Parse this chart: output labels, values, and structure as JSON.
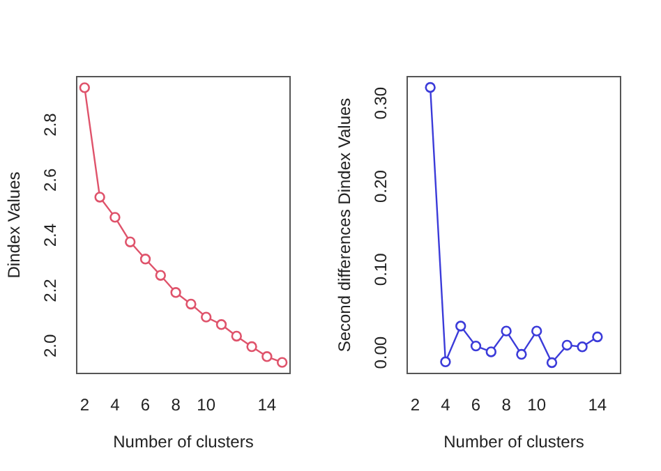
{
  "chart_data": [
    {
      "type": "line",
      "xlabel": "Number of clusters",
      "ylabel": "Dindex Values",
      "marker": "circle",
      "x": [
        2,
        3,
        4,
        5,
        6,
        7,
        8,
        9,
        10,
        11,
        12,
        13,
        14,
        15
      ],
      "series": [
        {
          "color": "#df536b",
          "values": [
            2.934,
            2.538,
            2.465,
            2.376,
            2.314,
            2.255,
            2.193,
            2.151,
            2.104,
            2.077,
            2.035,
            1.997,
            1.961,
            1.94
          ]
        }
      ],
      "xlim": [
        1.48,
        15.52
      ],
      "xticks": [
        2,
        4,
        6,
        8,
        10,
        14
      ],
      "ylim": [
        1.9,
        2.974
      ],
      "yticks": [
        {
          "value": 2,
          "label": "2.0"
        },
        {
          "value": 2.2,
          "label": "2.2"
        },
        {
          "value": 2.4,
          "label": "2.4"
        },
        {
          "value": 2.6,
          "label": "2.6"
        },
        {
          "value": 2.8,
          "label": "2.8"
        }
      ]
    },
    {
      "type": "line",
      "xlabel": "Number of clusters",
      "ylabel": "Second differences Dindex Values",
      "marker": "circle",
      "x": [
        3,
        4,
        5,
        6,
        7,
        8,
        9,
        10,
        11,
        12,
        13,
        14
      ],
      "series": [
        {
          "color": "#3b3bd9",
          "values": [
            0.319,
            -0.011,
            0.032,
            0.008,
            0.001,
            0.026,
            -0.002,
            0.026,
            -0.012,
            0.009,
            0.007,
            0.019
          ]
        }
      ],
      "xlim": [
        1.48,
        15.52
      ],
      "xticks": [
        2,
        4,
        6,
        8,
        10,
        14
      ],
      "ylim": [
        -0.025,
        0.332
      ],
      "yticks": [
        {
          "value": 0,
          "label": "0.00"
        },
        {
          "value": 0.1,
          "label": "0.10"
        },
        {
          "value": 0.2,
          "label": "0.20"
        },
        {
          "value": 0.3,
          "label": "0.30"
        }
      ]
    }
  ]
}
